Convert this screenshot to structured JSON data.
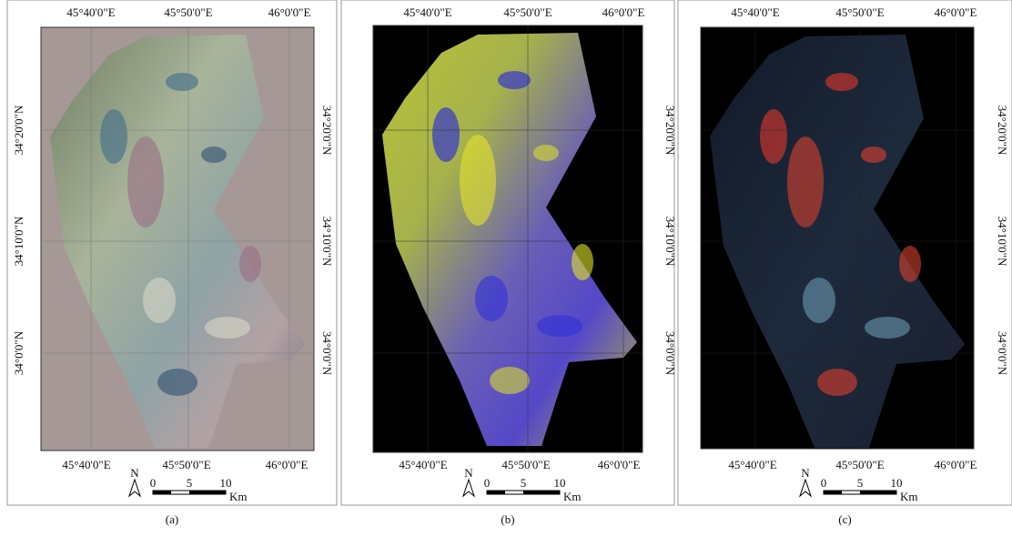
{
  "panels": [
    {
      "caption": "(a)",
      "top_lon_labels": [
        "45°40'0\"E",
        "45°50'0\"E",
        "46°0'0\"E"
      ],
      "bottom_lon_labels": [
        "45°40'0\"E",
        "45°50'0\"E",
        "46°0'0\"E"
      ],
      "left_lat_labels": [
        "34°20'0\"N",
        "34°10'0\"N",
        "34°0'0\"N"
      ],
      "right_lat_labels": [
        "34°20'0\"N",
        "34°10'0\"N",
        "34°0'0\"N"
      ],
      "north": "N",
      "scale_labels": [
        "0",
        "5",
        "10"
      ],
      "scale_unit": "Km"
    },
    {
      "caption": "(b)",
      "top_lon_labels": [
        "45°40'0\"E",
        "45°50'0\"E",
        "46°0'0\"E"
      ],
      "bottom_lon_labels": [
        "45°40'0\"E",
        "45°50'0\"E",
        "46°0'0\"E"
      ],
      "right_lat_labels": [
        "34°20'0\"N",
        "34°10'0\"N",
        "34°0'0\"N"
      ],
      "north": "N",
      "scale_labels": [
        "0",
        "5",
        "10"
      ],
      "scale_unit": "Km"
    },
    {
      "caption": "(c)",
      "top_lon_labels": [
        "45°40'0\"E",
        "45°50'0\"E",
        "46°0'0\"E"
      ],
      "bottom_lon_labels": [
        "45°40'0\"E",
        "45°50'0\"E",
        "46°0'0\"E"
      ],
      "right_lat_labels": [
        "34°20'0\"N",
        "34°10'0\"N",
        "34°0'0\"N"
      ],
      "north": "N",
      "scale_labels": [
        "0",
        "5",
        "10"
      ],
      "scale_unit": "Km"
    }
  ]
}
